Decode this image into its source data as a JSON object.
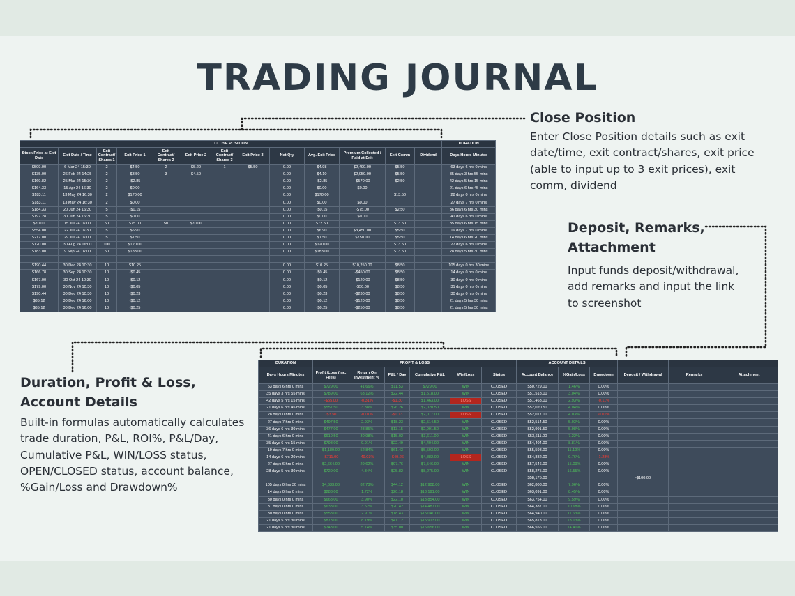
{
  "header": {
    "title": "TRADING JOURNAL"
  },
  "callouts": [
    {
      "title": "Close Position",
      "text": "Enter Close Position details such as exit date/time, exit contract/shares, exit price (able to input up to 3 exit prices), exit comm, dividend"
    },
    {
      "title": "Deposit, Remarks, Attachment",
      "text": "Input funds deposit/withdrawal, add remarks and input the link to screenshot"
    },
    {
      "title": "Duration, Profit & Loss, Account Details",
      "text": "Built-in formulas automatically calculates trade duration, P&L, ROI%, P&L/Day, Cumulative P&L, WIN/LOSS status, OPEN/CLOSED status, account balance, %Gain/Loss and Drawdown%"
    }
  ],
  "close_table": {
    "group_headers": [
      "CLOSE POSITION",
      "DURATION"
    ],
    "columns": [
      "Stock Price at Exit Date",
      "Exit Date / Time",
      "Exit Contract/ Shares 1",
      "Exit Price 1",
      "Exit Contract/ Shares 2",
      "Exit Price 2",
      "Exit Contract/ Shares 3",
      "Exit Price 3",
      "Net Qty",
      "Avg. Exit Price",
      "Premium Collected / Paid at Exit",
      "Exit Comm",
      "Dividend",
      "Days Hours Minutes"
    ],
    "rows": [
      [
        "$509.00",
        "6 Mar 24 15:30",
        "2",
        "$4.50",
        "2",
        "$5.20",
        "1",
        "$5.50",
        "0.00",
        "$4.98",
        "$2,490.00",
        "$5.50",
        null,
        "63 days 6 hrs 0 mins"
      ],
      [
        "$135.00",
        "26 Feb 24 14:25",
        "2",
        "$3.50",
        "3",
        "$4.50",
        null,
        null,
        "0.00",
        "$4.10",
        "$2,050.00",
        "$5.50",
        null,
        "35 days 3 hrs 55 mins"
      ],
      [
        "$169.82",
        "25 Mar 24 15:30",
        "2",
        "-$2.85",
        null,
        null,
        null,
        null,
        "0.00",
        "-$2.85",
        "-$570.00",
        "$2.50",
        null,
        "42 days 5 hrs 15 mins"
      ],
      [
        "$164.33",
        "15 Apr 24 16:30",
        "2",
        "$0.00",
        null,
        null,
        null,
        null,
        "0.00",
        "$0.00",
        "$0.00",
        null,
        null,
        "21 days 6 hrs 45 mins"
      ],
      [
        "$183.11",
        "13 May 24 16:30",
        "2",
        "$170.00",
        null,
        null,
        null,
        null,
        "0.00",
        "$170.00",
        null,
        "$13.50",
        null,
        "28 days 0 hrs 0 mins"
      ],
      [
        "$183.11",
        "13 May 24 16:30",
        "2",
        "$0.00",
        null,
        null,
        null,
        null,
        "0.00",
        "$0.00",
        "$0.00",
        null,
        null,
        "27 days 7 hrs 0 mins"
      ],
      [
        "$184.33",
        "20 Jun 24 16:30",
        "5",
        "-$0.15",
        null,
        null,
        null,
        null,
        "0.00",
        "-$0.15",
        "-$75.00",
        "$2.50",
        null,
        "36 days 6 hrs 30 mins"
      ],
      [
        "$197.28",
        "30 Jun 24 16:30",
        "5",
        "$0.00",
        null,
        null,
        null,
        null,
        "0.00",
        "$0.00",
        "$0.00",
        null,
        null,
        "41 days 6 hrs 0 mins"
      ],
      [
        "$70.00",
        "15 Jul 24 16:00",
        "50",
        "$75.00",
        "50",
        "$70.00",
        null,
        null,
        "0.00",
        "$72.50",
        null,
        "$13.50",
        null,
        "35 days 6 hrs 15 mins"
      ],
      [
        "$554.00",
        "22 Jul 24 16:30",
        "5",
        "$6.90",
        null,
        null,
        null,
        null,
        "0.00",
        "$6.90",
        "$3,450.00",
        "$5.50",
        null,
        "19 days 7 hrs 0 mins"
      ],
      [
        "$217.00",
        "29 Jul 24 16:00",
        "5",
        "$1.50",
        null,
        null,
        null,
        null,
        "0.00",
        "$1.50",
        "$750.00",
        "$5.50",
        null,
        "14 days 6 hrs 20 mins"
      ],
      [
        "$120.00",
        "30 Aug 24 16:00",
        "100",
        "$120.00",
        null,
        null,
        null,
        null,
        "0.00",
        "$120.00",
        null,
        "$13.50",
        null,
        "27 days 6 hrs 0 mins"
      ],
      [
        "$183.00",
        "9 Sep 24 16:00",
        "50",
        "$183.00",
        null,
        null,
        null,
        null,
        "0.00",
        "$183.00",
        null,
        "$13.50",
        null,
        "28 days 5 hrs 30 mins"
      ],
      [
        null,
        null,
        null,
        null,
        null,
        null,
        null,
        null,
        null,
        null,
        null,
        null,
        null,
        null
      ],
      [
        "$190.44",
        "30 Dec 24 10:30",
        "10",
        "$10.25",
        null,
        null,
        null,
        null,
        "0.00",
        "$10.25",
        "$10,250.00",
        "$8.50",
        null,
        "105 days 0 hrs 30 mins"
      ],
      [
        "$166.78",
        "30 Sep 24 10:30",
        "10",
        "-$0.45",
        null,
        null,
        null,
        null,
        "0.00",
        "-$0.45",
        "-$450.00",
        "$8.50",
        null,
        "14 days 0 hrs 0 mins"
      ],
      [
        "$167.00",
        "30 Oct 24 10:30",
        "10",
        "-$0.12",
        null,
        null,
        null,
        null,
        "0.00",
        "-$0.12",
        "-$120.00",
        "$8.50",
        null,
        "30 days 0 hrs 0 mins"
      ],
      [
        "$179.00",
        "30 Nov 24 10:30",
        "10",
        "-$0.05",
        null,
        null,
        null,
        null,
        "0.00",
        "-$0.05",
        "-$50.00",
        "$8.50",
        null,
        "31 days 0 hrs 0 mins"
      ],
      [
        "$190.44",
        "30 Dec 24 10:30",
        "10",
        "-$0.23",
        null,
        null,
        null,
        null,
        "0.00",
        "-$0.23",
        "-$230.00",
        "$8.50",
        null,
        "30 days 0 hrs 0 mins"
      ],
      [
        "$85.12",
        "30 Dec 24 16:00",
        "10",
        "-$0.12",
        null,
        null,
        null,
        null,
        "0.00",
        "-$0.12",
        "-$120.00",
        "$8.50",
        null,
        "21 days 5 hrs 30 mins"
      ],
      [
        "$85.12",
        "30 Dec 24 16:00",
        "10",
        "-$0.25",
        null,
        null,
        null,
        null,
        "0.00",
        "-$0.25",
        "-$250.00",
        "$8.50",
        null,
        "21 days 5 hrs 30 mins"
      ]
    ]
  },
  "pnl_table": {
    "group_headers": [
      "DURATION",
      "PROFIT & LOSS",
      "ACCOUNT DETAILS"
    ],
    "columns": [
      "Days Hours Minutes",
      "Profit /Loss (Inc. Fees)",
      "Return On Investment %",
      "P&L / Day",
      "Cumulative P&L",
      "Win/Loss",
      "Status",
      "Account Balance",
      "%Gain/Loss",
      "Drawdown",
      "Deposit / Withdrawal",
      "Remarks",
      "Attachment"
    ],
    "rows": [
      [
        "63 days 6 hrs 0 mins",
        "$729.00",
        "41.66%",
        "$11.53",
        "$729.00",
        "WIN",
        "CLOSED",
        "$50,729.00",
        "1.46%",
        "0.00%",
        null,
        null,
        null
      ],
      [
        "35 days 3 hrs 55 mins",
        "$789.00",
        "63.12%",
        "$22.44",
        "$1,518.00",
        "WIN",
        "CLOSED",
        "$51,518.00",
        "3.04%",
        "0.00%",
        null,
        null,
        null
      ],
      [
        "42 days 5 hrs 15 mins",
        "-$55.00",
        "-0.31%",
        "-$1.30",
        "$1,463.00",
        "LOSS",
        "CLOSED",
        "$51,463.00",
        "2.93%",
        "-0.11%",
        null,
        null,
        null
      ],
      [
        "21 days 6 hrs 45 mins",
        "$557.50",
        "3.38%",
        "$26.26",
        "$2,020.50",
        "WIN",
        "CLOSED",
        "$52,020.50",
        "4.04%",
        "0.00%",
        null,
        null,
        null
      ],
      [
        "28 days 0 hrs 0 mins",
        "-$3.50",
        "-0.01%",
        "-$0.13",
        "$2,017.00",
        "LOSS",
        "CLOSED",
        "$52,017.00",
        "4.03%",
        "-0.01%",
        null,
        null,
        null
      ],
      [
        "27 days 7 hrs 0 mins",
        "$497.50",
        "2.93%",
        "$18.23",
        "$2,514.50",
        "WIN",
        "CLOSED",
        "$52,514.50",
        "5.03%",
        "0.00%",
        null,
        null,
        null
      ],
      [
        "36 days 6 hrs 30 mins",
        "$477.00",
        "23.85%",
        "$13.15",
        "$2,991.50",
        "WIN",
        "CLOSED",
        "$52,991.50",
        "5.98%",
        "0.00%",
        null,
        null,
        null
      ],
      [
        "41 days 6 hrs 0 mins",
        "$619.50",
        "30.98%",
        "$15.02",
        "$3,611.00",
        "WIN",
        "CLOSED",
        "$53,611.00",
        "7.22%",
        "0.00%",
        null,
        null,
        null
      ],
      [
        "35 days 6 hrs 15 mins",
        "$793.00",
        "9.91%",
        "$22.49",
        "$4,404.00",
        "WIN",
        "CLOSED",
        "$54,404.00",
        "8.81%",
        "0.00%",
        null,
        null,
        null
      ],
      [
        "19 days 7 hrs 0 mins",
        "$1,189.00",
        "52.84%",
        "$61.43",
        "$5,593.00",
        "WIN",
        "CLOSED",
        "$55,593.00",
        "11.19%",
        "0.00%",
        null,
        null,
        null
      ],
      [
        "14 days 6 hrs 20 mins",
        "-$711.00",
        "-49.03%",
        "-$49.26",
        "$4,882.00",
        "LOSS",
        "CLOSED",
        "$54,882.00",
        "9.76%",
        "-1.28%",
        null,
        null,
        null
      ],
      [
        "27 days 6 hrs 0 mins",
        "$2,664.00",
        "29.62%",
        "$97.76",
        "$7,546.00",
        "WIN",
        "CLOSED",
        "$57,546.00",
        "15.09%",
        "0.00%",
        null,
        null,
        null
      ],
      [
        "28 days 5 hrs 30 mins",
        "$729.00",
        "4.34%",
        "$25.82",
        "$8,275.00",
        "WIN",
        "CLOSED",
        "$58,275.00",
        "16.55%",
        "0.00%",
        null,
        null,
        null
      ],
      [
        null,
        null,
        null,
        null,
        null,
        null,
        null,
        "$58,175.00",
        null,
        null,
        "-$100.00",
        null,
        null
      ],
      [
        "105 days 0 hrs 30 mins",
        "$4,633.00",
        "82.73%",
        "$44.12",
        "$12,908.00",
        "WIN",
        "CLOSED",
        "$62,808.00",
        "7.96%",
        "0.00%",
        null,
        null,
        null
      ],
      [
        "14 days 0 hrs 0 mins",
        "$283.00",
        "1.72%",
        "$20.18",
        "$13,191.00",
        "WIN",
        "CLOSED",
        "$63,091.00",
        "8.45%",
        "0.00%",
        null,
        null,
        null
      ],
      [
        "30 days 0 hrs 0 mins",
        "$663.00",
        "3.90%",
        "$22.10",
        "$13,854.00",
        "WIN",
        "CLOSED",
        "$63,754.00",
        "9.59%",
        "0.00%",
        null,
        null,
        null
      ],
      [
        "31 days 0 hrs 0 mins",
        "$633.00",
        "3.52%",
        "$20.42",
        "$14,487.00",
        "WIN",
        "CLOSED",
        "$64,387.00",
        "10.68%",
        "0.00%",
        null,
        null,
        null
      ],
      [
        "30 days 0 hrs 0 mins",
        "$553.00",
        "2.91%",
        "$18.43",
        "$15,040.00",
        "WIN",
        "CLOSED",
        "$64,940.00",
        "11.63%",
        "0.00%",
        null,
        null,
        null
      ],
      [
        "21 days 5 hrs 30 mins",
        "$873.00",
        "8.19%",
        "$41.12",
        "$15,913.00",
        "WIN",
        "CLOSED",
        "$65,813.00",
        "13.13%",
        "0.00%",
        null,
        null,
        null
      ],
      [
        "21 days 5 hrs 30 mins",
        "$743.00",
        "5.74%",
        "$35.00",
        "$16,656.00",
        "WIN",
        "CLOSED",
        "$66,556.00",
        "14.41%",
        "0.00%",
        null,
        null,
        null
      ]
    ]
  }
}
